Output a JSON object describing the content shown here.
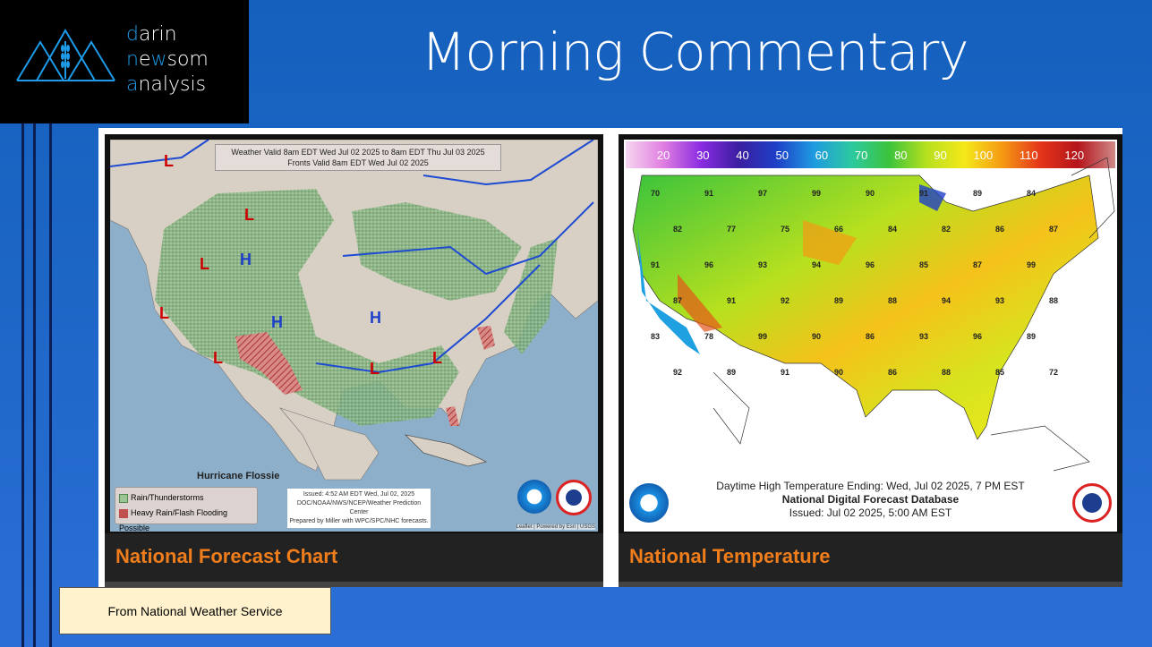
{
  "logo": {
    "line1_accent": "d",
    "line1_rest": "arin",
    "line2_accent": "n",
    "line2_mid": "e",
    "line2_accent2": "w",
    "line2_rest": "som",
    "line3_accent": "a",
    "line3_rest": "nalysis"
  },
  "header": {
    "title": "Morning Commentary"
  },
  "cards": [
    {
      "caption": "National Forecast Chart",
      "valid_line1": "Weather Valid 8am EDT Wed Jul 02 2025 to 8am EDT Thu Jul 03 2025",
      "valid_line2": "Fronts Valid 8am EDT Wed Jul 02 2025",
      "hurricane": "Hurricane Flossie",
      "legend": [
        "Rain/Thunderstorms",
        "Heavy Rain/Flash Flooding Possible"
      ],
      "issued": [
        "Issued: 4:52 AM EDT  Wed, Jul 02, 2025",
        "DOC/NOAA/NWS/NCEP/Weather Prediction Center",
        "Prepared by Miller with WPC/SPC/NHC forecasts."
      ],
      "attribution": "Leaflet | Powered by Esri | USGS",
      "colors": {
        "rain": "#7fb07a",
        "heavy": "#c0504d",
        "ocean": "#8eafc9",
        "land": "#d8d0c4"
      }
    },
    {
      "caption": "National Temperature",
      "scale": [
        "20",
        "30",
        "40",
        "50",
        "60",
        "70",
        "80",
        "90",
        "100",
        "110",
        "120"
      ],
      "footer_line1": "Daytime High Temperature Ending: Wed, Jul 02 2025, 7 PM EST",
      "footer_line2": "National Digital Forecast Database",
      "footer_line3": "Issued: Jul 02 2025, 5:00 AM EST",
      "sample_temps": [
        "70",
        "91",
        "97",
        "99",
        "90",
        "91",
        "89",
        "84",
        "82",
        "77",
        "75",
        "66",
        "84",
        "82",
        "86",
        "87",
        "91",
        "96",
        "93",
        "94",
        "96",
        "85",
        "87",
        "99",
        "87",
        "91",
        "92",
        "89",
        "88",
        "94",
        "93",
        "88",
        "83",
        "78",
        "99",
        "90",
        "86",
        "93",
        "96",
        "89",
        "92",
        "89",
        "91",
        "90",
        "86",
        "88",
        "85",
        "72"
      ]
    }
  ],
  "note": "From National Weather Service"
}
